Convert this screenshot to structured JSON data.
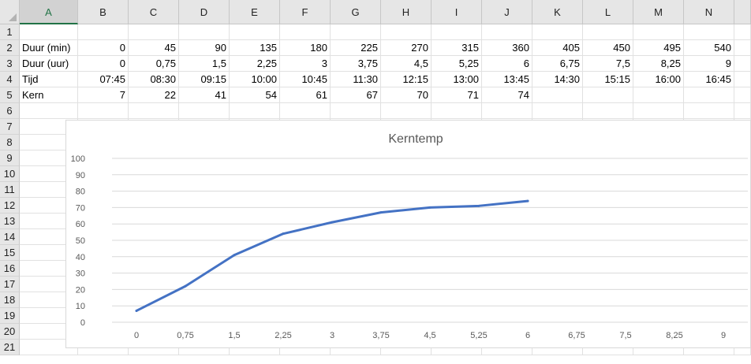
{
  "columns": [
    "A",
    "B",
    "C",
    "D",
    "E",
    "F",
    "G",
    "H",
    "I",
    "J",
    "K",
    "L",
    "M",
    "N"
  ],
  "selected_column": "A",
  "rows": [
    "1",
    "2",
    "3",
    "4",
    "5",
    "6",
    "7",
    "8",
    "9",
    "10",
    "11",
    "12",
    "13",
    "14",
    "15",
    "16",
    "17",
    "18",
    "19",
    "20",
    "21"
  ],
  "cells": {
    "row2": {
      "label": "Duur (min)",
      "values": [
        "0",
        "45",
        "90",
        "135",
        "180",
        "225",
        "270",
        "315",
        "360",
        "405",
        "450",
        "495",
        "540"
      ]
    },
    "row3": {
      "label": "Duur (uur)",
      "values": [
        "0",
        "0,75",
        "1,5",
        "2,25",
        "3",
        "3,75",
        "4,5",
        "5,25",
        "6",
        "6,75",
        "7,5",
        "8,25",
        "9"
      ]
    },
    "row4": {
      "label": "Tijd",
      "values": [
        "07:45",
        "08:30",
        "09:15",
        "10:00",
        "10:45",
        "11:30",
        "12:15",
        "13:00",
        "13:45",
        "14:30",
        "15:15",
        "16:00",
        "16:45"
      ]
    },
    "row5": {
      "label": "Kern",
      "values": [
        "7",
        "22",
        "41",
        "54",
        "61",
        "67",
        "70",
        "71",
        "74",
        "",
        "",
        "",
        ""
      ]
    }
  },
  "chart_data": {
    "type": "line",
    "title": "Kerntemp",
    "categories": [
      "0",
      "0,75",
      "1,5",
      "2,25",
      "3",
      "3,75",
      "4,5",
      "5,25",
      "6",
      "6,75",
      "7,5",
      "8,25",
      "9"
    ],
    "series": [
      {
        "values": [
          7,
          22,
          41,
          54,
          61,
          67,
          70,
          71,
          74,
          null,
          null,
          null,
          null
        ],
        "color": "#4472c4"
      }
    ],
    "yticks": [
      "0",
      "10",
      "20",
      "30",
      "40",
      "50",
      "60",
      "70",
      "80",
      "90",
      "100"
    ],
    "ylim": [
      0,
      100
    ],
    "grid": true,
    "legend": "none"
  }
}
